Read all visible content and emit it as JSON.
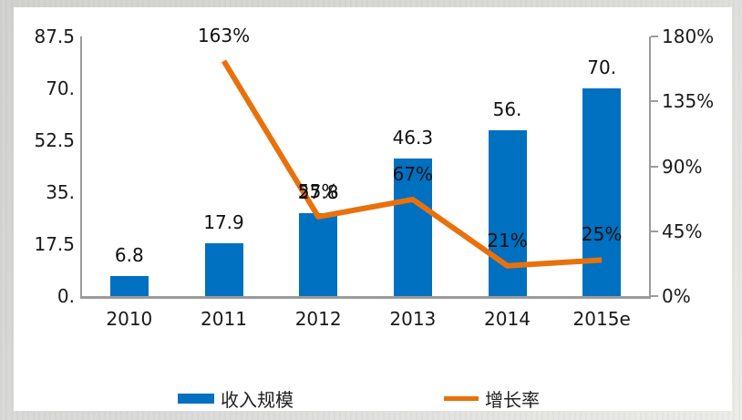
{
  "chart_data": {
    "type": "combo",
    "categories": [
      "2010",
      "2011",
      "2012",
      "2013",
      "2014",
      "2015e"
    ],
    "series": [
      {
        "name": "收入规模",
        "type": "bar",
        "axis": "left",
        "color": "#0070C0",
        "values": [
          6.8,
          17.9,
          27.8,
          46.3,
          56,
          70
        ],
        "value_labels": [
          "6.8",
          "17.9",
          "27.8",
          "46.3",
          "56.",
          "70."
        ]
      },
      {
        "name": "增长率",
        "type": "line",
        "axis": "right",
        "color": "#E8710C",
        "values": [
          null,
          163,
          55,
          67,
          21,
          25
        ],
        "value_labels": [
          null,
          "163%",
          "55%",
          "67%",
          "21%",
          "25%"
        ]
      }
    ],
    "left_axis": {
      "min": 0,
      "max": 87.5,
      "tick_labels": [
        "87.5",
        "70.",
        "52.5",
        "35.",
        "17.5",
        "0."
      ]
    },
    "right_axis": {
      "min": 0,
      "max": 180,
      "tick_labels": [
        "180%",
        "135%",
        "90%",
        "45%",
        "0%"
      ]
    },
    "grid": false,
    "legend_position": "bottom",
    "title": ""
  },
  "colors": {
    "bar_blue": "#0070C0",
    "line_orange": "#E8710C",
    "axis_gray": "#9b9b9b",
    "panel_bg": "#ffffff",
    "frame_bg": "#d8d8d6"
  }
}
